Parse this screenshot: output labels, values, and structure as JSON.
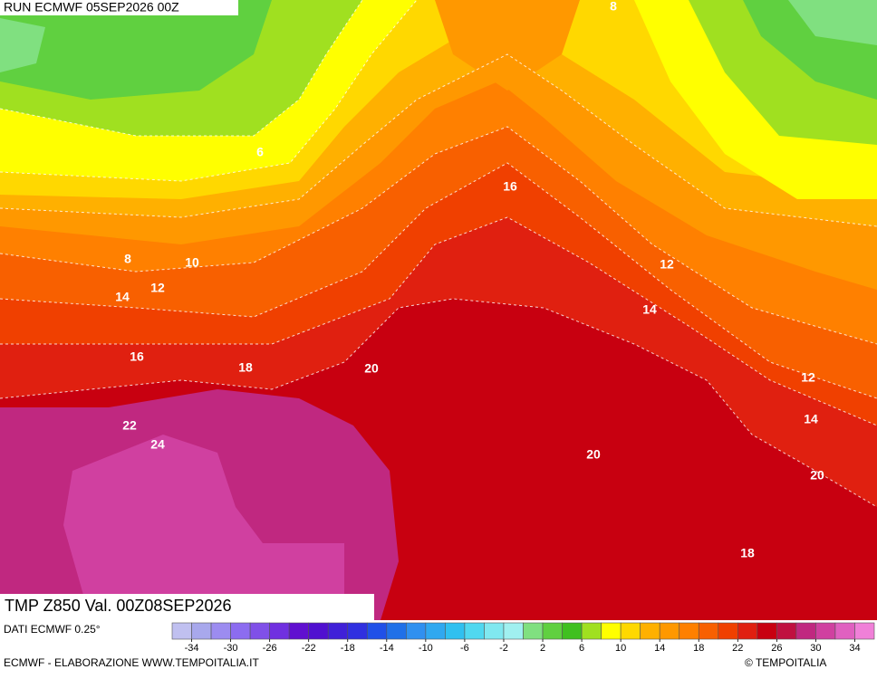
{
  "header": {
    "run": "RUN ECMWF 05SEP2026 00Z"
  },
  "map": {
    "contour_labels": [
      "8",
      "6",
      "16",
      "8",
      "10",
      "12",
      "14",
      "12",
      "14",
      "16",
      "18",
      "20",
      "12",
      "22",
      "14",
      "24",
      "20",
      "20",
      "18"
    ]
  },
  "legend": {
    "title": "TMP Z850 Val. 00Z08SEP2026",
    "source": "DATI ECMWF 0.25°",
    "colors": [
      "#c0c0f0",
      "#a8a8ec",
      "#9c8cf0",
      "#8c6cf0",
      "#8050e8",
      "#7030e0",
      "#6010d0",
      "#5010d0",
      "#4020d8",
      "#3030e0",
      "#2050e8",
      "#2070e8",
      "#3090f0",
      "#30a8f0",
      "#30c0f0",
      "#50d8f0",
      "#80e8f0",
      "#a0f0f0",
      "#80e080",
      "#60d040",
      "#40c020",
      "#a0e020",
      "#ffff00",
      "#ffd800",
      "#ffb000",
      "#ff9800",
      "#ff8000",
      "#f86000",
      "#f04000",
      "#e02010",
      "#c80010",
      "#c01040",
      "#c02880",
      "#d040a0",
      "#e060c0",
      "#f080d8"
    ],
    "ticks": [
      -34,
      -30,
      -26,
      -22,
      -18,
      -14,
      -10,
      -6,
      -2,
      2,
      6,
      10,
      14,
      18,
      22,
      26,
      30,
      34
    ]
  },
  "footer": {
    "credit": "ECMWF - ELABORAZIONE WWW.TEMPOITALIA.IT",
    "brand": "© TEMPOITALIA"
  }
}
